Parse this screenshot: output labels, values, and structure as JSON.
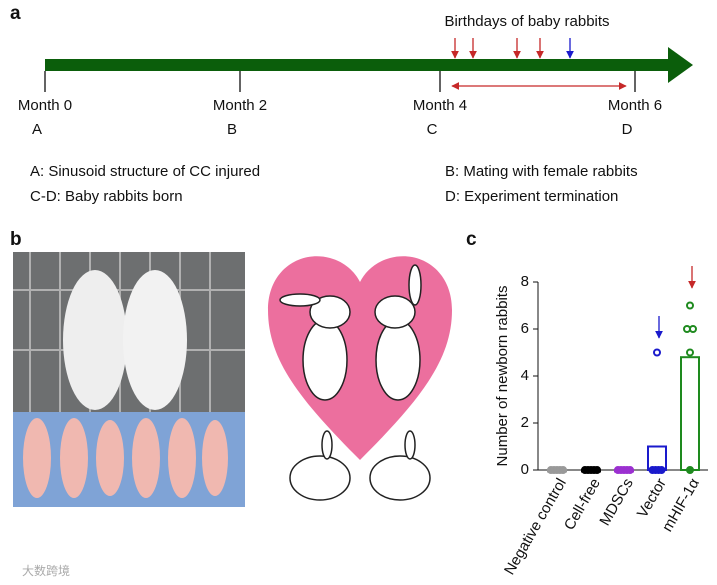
{
  "panel_labels": [
    "a",
    "b",
    "c"
  ],
  "timeline": {
    "title": "Birthdays of baby rabbits",
    "months": [
      "Month 0",
      "Month 2",
      "Month 4",
      "Month 6"
    ],
    "letters": [
      "A",
      "B",
      "C",
      "D"
    ],
    "notes": [
      "A: Sinusoid structure of CC injured",
      "C-D: Baby rabbits born",
      "B: Mating with female rabbits",
      "D: Experiment termination"
    ]
  },
  "watermark": "大数跨境",
  "chart_data": {
    "type": "bar",
    "y_label": "Number of newborn rabbits",
    "categories": [
      "Negative control",
      "Cell-free",
      "MDSCs",
      "Vector",
      "mHIF-1α"
    ],
    "values": [
      0,
      0,
      0,
      1,
      4.8
    ],
    "colors": [
      "#999999",
      "#000000",
      "#9b30d0",
      "#1a1acc",
      "#1e8a1e"
    ],
    "points": [
      [
        0,
        0,
        0,
        0,
        0
      ],
      [
        0,
        0,
        0,
        0,
        0
      ],
      [
        0,
        0,
        0,
        0,
        0
      ],
      [
        5,
        0,
        0,
        0,
        0
      ],
      [
        7,
        6,
        6,
        5,
        0
      ]
    ],
    "ylim": [
      0,
      8
    ],
    "yticks": [
      0,
      2,
      4,
      6,
      8
    ]
  }
}
